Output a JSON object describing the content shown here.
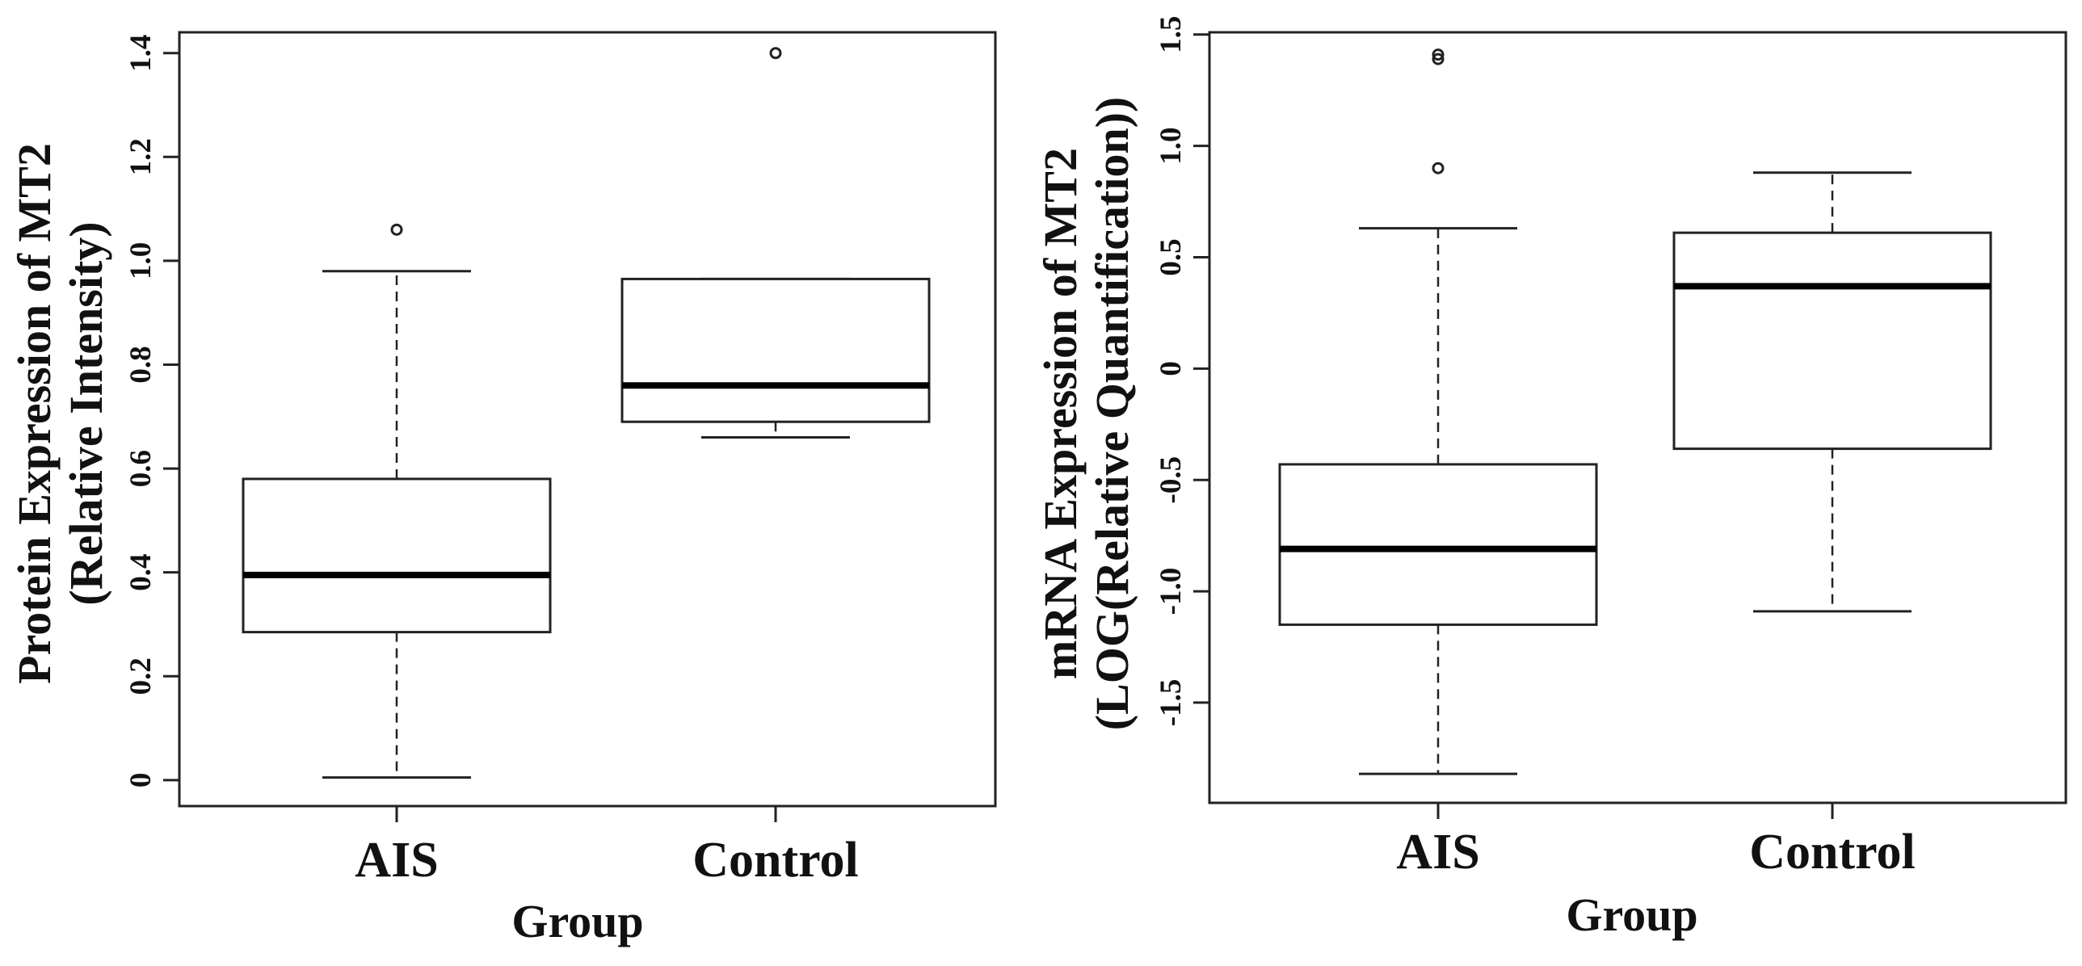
{
  "chart_data": [
    {
      "type": "box",
      "xlabel": "Group",
      "ylabel": "Protein Expression of MT2",
      "ylabel_line2": "(Relative Intensity)",
      "ylim": [
        -0.05,
        1.44
      ],
      "yticks": [
        0,
        0.2,
        0.4,
        0.6,
        0.8,
        1.0,
        1.2,
        1.4
      ],
      "ytick_labels": [
        "0",
        "0.2",
        "0.4",
        "0.6",
        "0.8",
        "1.0",
        "1.2",
        "1.4"
      ],
      "categories": [
        "AIS",
        "Control"
      ],
      "boxes": [
        {
          "category": "AIS",
          "whisker_low": 0.005,
          "q1": 0.285,
          "median": 0.395,
          "q3": 0.58,
          "whisker_high": 0.98,
          "outliers": [
            1.06
          ]
        },
        {
          "category": "Control",
          "whisker_low": 0.66,
          "q1": 0.69,
          "median": 0.76,
          "q3": 0.965,
          "whisker_high": 0.965,
          "outliers": [
            1.4
          ]
        }
      ]
    },
    {
      "type": "box",
      "xlabel": "Group",
      "ylabel": "mRNA Expression of MT2",
      "ylabel_line2": "(LOG(Relative Quantification))",
      "ylim": [
        -1.95,
        1.51
      ],
      "yticks": [
        -1.5,
        -1.0,
        -0.5,
        0,
        0.5,
        1.0,
        1.5
      ],
      "ytick_labels": [
        "-1.5",
        "-1.0",
        "-0.5",
        "0",
        "0.5",
        "1.0",
        "1.5"
      ],
      "categories": [
        "AIS",
        "Control"
      ],
      "boxes": [
        {
          "category": "AIS",
          "whisker_low": -1.82,
          "q1": -1.15,
          "median": -0.81,
          "q3": -0.43,
          "whisker_high": 0.63,
          "outliers": [
            0.9,
            1.39,
            1.41
          ]
        },
        {
          "category": "Control",
          "whisker_low": -1.09,
          "q1": -0.36,
          "median": 0.37,
          "q3": 0.61,
          "whisker_high": 0.88,
          "outliers": []
        }
      ]
    }
  ]
}
